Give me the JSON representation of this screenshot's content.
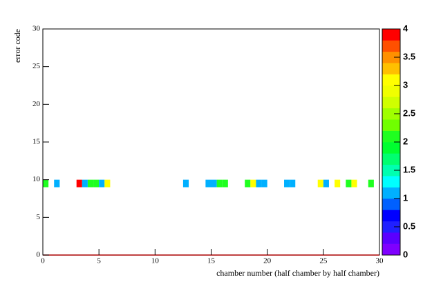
{
  "chart_data": {
    "type": "heatmap",
    "xlabel": "chamber number (half chamber by half chamber)",
    "ylabel": "error code",
    "xlim": [
      0,
      30
    ],
    "xticks": [
      0,
      5,
      10,
      15,
      20,
      25,
      30
    ],
    "ylim": [
      0,
      30
    ],
    "yticks": [
      0,
      5,
      10,
      15,
      20,
      25,
      30
    ],
    "bin_size": [
      0.5,
      1
    ],
    "x": [
      0,
      1,
      3,
      3.5,
      4,
      4.5,
      5,
      5.5,
      12.5,
      14.5,
      15,
      15.5,
      16,
      18,
      18.5,
      19,
      19.5,
      21.5,
      22,
      24.5,
      25,
      26,
      27,
      27.5,
      29
    ],
    "y": [
      9,
      9,
      9,
      9,
      9,
      9,
      9,
      9,
      9,
      9,
      9,
      9,
      9,
      9,
      9,
      9,
      9,
      9,
      9,
      9,
      9,
      9,
      9,
      9,
      9
    ],
    "values": [
      2,
      1,
      4,
      1,
      2,
      2,
      1,
      3,
      1,
      1,
      1,
      2,
      2,
      2,
      3,
      1,
      1,
      1,
      1,
      3,
      1,
      3,
      2,
      3,
      2
    ],
    "zlim": [
      0,
      4
    ],
    "zticks": [
      0,
      0.5,
      1,
      1.5,
      2,
      2.5,
      3,
      3.5,
      4
    ],
    "palette": [
      "#7f00ff",
      "#5a00ff",
      "#2020ff",
      "#0000ff",
      "#0060ff",
      "#00b0ff",
      "#00ffff",
      "#00ffb0",
      "#00ff70",
      "#00ff30",
      "#20ff20",
      "#70ff00",
      "#a0ff00",
      "#d0ff00",
      "#f0ff00",
      "#ffff00",
      "#ffc000",
      "#ff9000",
      "#ff5000",
      "#ff0000"
    ]
  }
}
